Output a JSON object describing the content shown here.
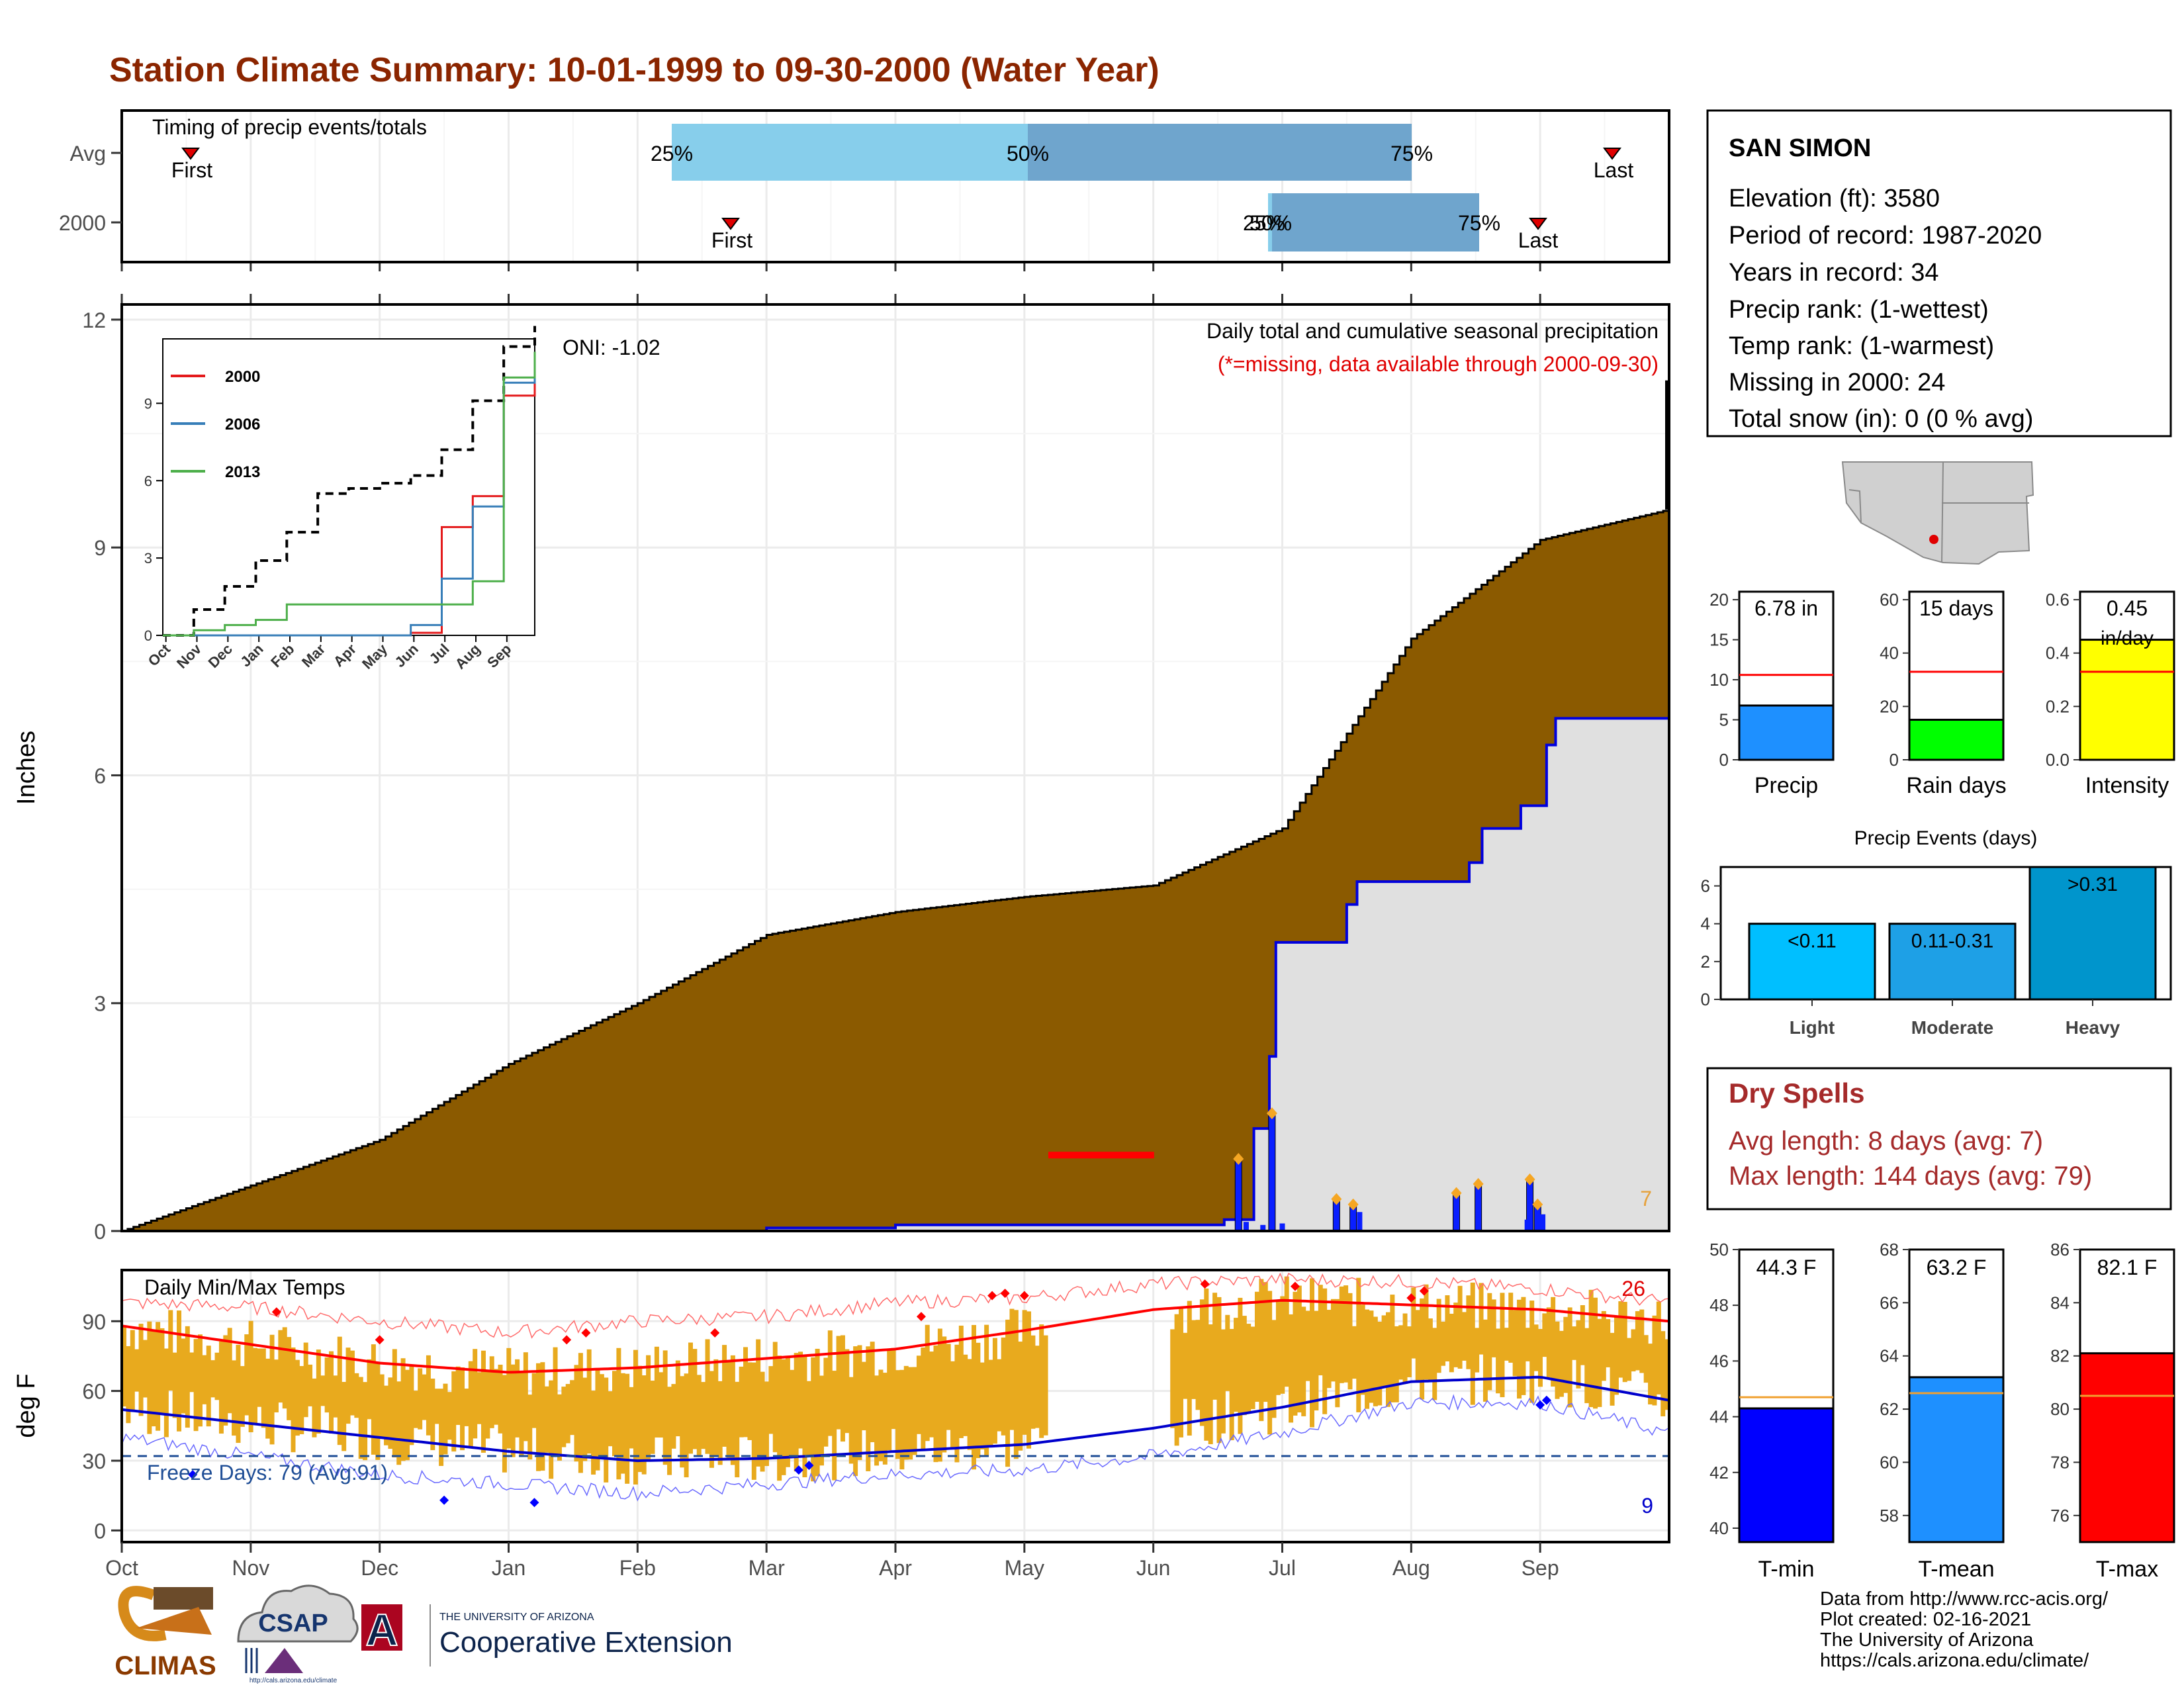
{
  "title": "Station Climate Summary: 10-01-1999 to 09-30-2000 (Water Year)",
  "colors": {
    "title": "#8B2500",
    "brown": "#8B5A00",
    "avg_fill": "#E0E0E0",
    "temp_bar": "#E8AA1E",
    "tmax_line": "#FF0000",
    "tmin_line": "#0000CC",
    "light_blue": "#87CEEB",
    "steel_blue": "#6FA5CD",
    "dry_red": "#A52A2A",
    "freeze_blue": "#1F4E96",
    "orange": "#E6A23C"
  },
  "months": [
    "Oct",
    "Nov",
    "Dec",
    "Jan",
    "Feb",
    "Mar",
    "Apr",
    "May",
    "Jun",
    "Jul",
    "Aug",
    "Sep"
  ],
  "timing": {
    "caption": "Timing of precip events/totals",
    "rows": [
      "Avg",
      "2000"
    ],
    "avg": {
      "first_label": "First",
      "last_label": "Last",
      "p25": "25%",
      "p50": "50%",
      "p75": "75%"
    },
    "y2000": {
      "first_label": "First",
      "last_label": "Last",
      "p25": "25%",
      "p50": "50%",
      "p75": "75%"
    }
  },
  "precip_panel": {
    "ylabel": "Inches",
    "yticks": [
      "0",
      "3",
      "6",
      "9",
      "12"
    ],
    "caption": "Daily total and cumulative seasonal precipitation",
    "note": "(*=missing, data available through 2000-09-30)",
    "oni": "ONI: -1.02",
    "count_label": "7"
  },
  "inset": {
    "yticks": [
      "0",
      "3",
      "6",
      "9"
    ],
    "months": [
      "Oct",
      "Nov",
      "Dec",
      "Jan",
      "Feb",
      "Mar",
      "Apr",
      "May",
      "Jun",
      "Jul",
      "Aug",
      "Sep"
    ],
    "legend": [
      {
        "name": "2000",
        "color": "#E41A1C"
      },
      {
        "name": "2006",
        "color": "#377EB8"
      },
      {
        "name": "2013",
        "color": "#4DAF4A"
      }
    ]
  },
  "temp_panel": {
    "ylabel": "deg F",
    "caption": "Daily Min/Max Temps",
    "yticks": [
      "0",
      "30",
      "60",
      "90"
    ],
    "freeze_label": "Freeze Days: 79 (Avg:91)",
    "max_count": "26",
    "min_count": "9"
  },
  "station": {
    "name": "SAN SIMON",
    "lines": [
      "Elevation (ft): 3580",
      "Period of record: 1987-2020",
      "Years in record: 34",
      "Precip rank:  (1-wettest)",
      "Temp rank:  (1-warmest)",
      "Missing in 2000: 24",
      "Total snow (in): 0 (0 % avg)"
    ]
  },
  "mini_bars": [
    {
      "label": "Precip",
      "value_label": "6.78 in",
      "yticks": [
        "0",
        "5",
        "10",
        "15",
        "20"
      ],
      "ymin": 0,
      "ymax": 21,
      "value": 6.78,
      "avg": 10.6,
      "color": "#1E90FF"
    },
    {
      "label": "Rain days",
      "value_label": "15 days",
      "yticks": [
        "0",
        "20",
        "40",
        "60"
      ],
      "ymin": 0,
      "ymax": 63,
      "value": 15,
      "avg": 33,
      "color": "#00FF00"
    },
    {
      "label": "Intensity",
      "value_label": "0.45",
      "value_label2": "in/day",
      "yticks": [
        "0.0",
        "0.2",
        "0.4",
        "0.6"
      ],
      "ymin": 0,
      "ymax": 0.63,
      "value": 0.45,
      "avg": 0.33,
      "color": "#FFFF00"
    }
  ],
  "events": {
    "title": "Precip Events (days)",
    "yticks": [
      "0",
      "2",
      "4",
      "6"
    ],
    "bars": [
      {
        "cat": "Light",
        "label": "<0.11",
        "value": 4
      },
      {
        "cat": "Moderate",
        "label": "0.11-0.31",
        "value": 4
      },
      {
        "cat": "Heavy",
        "label": ">0.31",
        "value": 7
      }
    ]
  },
  "dry_spells": {
    "title": "Dry Spells",
    "avg_length": "Avg length: 8 days (avg: 7)",
    "max_length": "Max length: 144 days (avg: 79)"
  },
  "temp_bars": [
    {
      "label": "T-min",
      "value_label": "44.3 F",
      "yticks": [
        "40",
        "42",
        "44",
        "46",
        "48",
        "50"
      ],
      "ymin": 39.5,
      "ymax": 50,
      "value": 44.3,
      "avg": 44.7,
      "color": "#0000FF"
    },
    {
      "label": "T-mean",
      "value_label": "63.2 F",
      "yticks": [
        "58",
        "60",
        "62",
        "64",
        "66",
        "68"
      ],
      "ymin": 57,
      "ymax": 68,
      "value": 63.2,
      "avg": 62.6,
      "color": "#1E90FF"
    },
    {
      "label": "T-max",
      "value_label": "82.1 F",
      "yticks": [
        "76",
        "78",
        "80",
        "82",
        "84",
        "86"
      ],
      "ymin": 75,
      "ymax": 86,
      "value": 82.1,
      "avg": 80.5,
      "color": "#FF0000"
    }
  ],
  "footer": {
    "lines": [
      "Data from http://www.rcc-acis.org/",
      "Plot created: 02-16-2021",
      "The University of Arizona",
      "https://cals.arizona.edu/climate/"
    ],
    "logos": {
      "climas": "CLIMAS",
      "csap": "CSAP",
      "csap_url": "http://cals.arizona.edu/climate",
      "ua_small": "THE UNIVERSITY OF ARIZONA",
      "ua_big": "Cooperative Extension",
      "ua_mark": "A"
    }
  },
  "chart_data": [
    {
      "type": "area",
      "name": "cumulative precipitation",
      "x": [
        "Oct",
        "Nov",
        "Dec",
        "Jan",
        "Feb",
        "Mar",
        "Apr",
        "May",
        "Jun",
        "Jul",
        "Aug",
        "Sep",
        "Sep-end"
      ],
      "series": [
        {
          "values": [
            0,
            0.6,
            1.2,
            2.2,
            3.0,
            3.9,
            4.2,
            4.4,
            4.55,
            5.3,
            7.8,
            9.1,
            9.5
          ]
        },
        {
          "values": [
            0,
            0,
            0,
            0,
            0,
            0.05,
            0.1,
            0.1,
            0.1,
            3.8,
            4.6,
            6.7,
            6.7
          ]
        }
      ],
      "ylim": [
        0,
        12.2
      ]
    },
    {
      "type": "bar",
      "name": "daily precipitation",
      "x": [
        "Jun 20",
        "Jun 28",
        "Jul 13",
        "Jul 17",
        "Aug 12",
        "Aug 17",
        "Aug 30",
        "Sep 1"
      ],
      "values": [
        0.95,
        1.55,
        0.42,
        0.35,
        0.5,
        0.62,
        0.68,
        0.35
      ],
      "ylim": [
        0,
        12.2
      ]
    },
    {
      "type": "line",
      "name": "inset cumulative",
      "x": [
        "Oct",
        "Nov",
        "Dec",
        "Jan",
        "Feb",
        "Mar",
        "Apr",
        "May",
        "Jun",
        "Jul",
        "Aug",
        "Sep",
        "Sep-end"
      ],
      "series": [
        {
          "values": [
            0,
            0,
            0,
            0,
            0,
            0,
            0,
            0,
            0.1,
            4.2,
            5.4,
            9.3,
            10
          ]
        },
        {
          "values": [
            0,
            0,
            0,
            0,
            0,
            0,
            0,
            0,
            0.4,
            2.2,
            5.0,
            9.8,
            10.5
          ]
        },
        {
          "values": [
            0,
            0.2,
            0.4,
            0.6,
            1.2,
            1.2,
            1.2,
            1.2,
            1.2,
            1.2,
            2.1,
            10.0,
            11
          ]
        },
        {
          "values": [
            0,
            1.0,
            1.9,
            2.9,
            4.0,
            5.5,
            5.7,
            5.9,
            6.2,
            7.2,
            9.1,
            11.2,
            12
          ]
        }
      ],
      "ylim": [
        0,
        12
      ]
    },
    {
      "type": "line",
      "name": "daily temperatures",
      "x": [
        "Oct",
        "Nov",
        "Dec",
        "Jan",
        "Feb",
        "Mar",
        "Apr",
        "May",
        "Jun",
        "Jul",
        "Aug",
        "Sep",
        "Sep-end"
      ],
      "series": [
        {
          "values": [
            88,
            80,
            72,
            68,
            70,
            74,
            78,
            86,
            95,
            99,
            97,
            95,
            90
          ]
        },
        {
          "values": [
            52,
            46,
            40,
            34,
            30,
            31,
            34,
            37,
            44,
            53,
            64,
            66,
            56
          ]
        },
        {
          "values": [
            98,
            96,
            90,
            85,
            90,
            92,
            98,
            100,
            106,
            108,
            107,
            104,
            98
          ]
        },
        {
          "values": [
            40,
            32,
            24,
            20,
            16,
            20,
            24,
            26,
            32,
            42,
            55,
            55,
            42
          ]
        }
      ],
      "ylim": [
        -5,
        112
      ],
      "freeze_line": 32
    }
  ]
}
